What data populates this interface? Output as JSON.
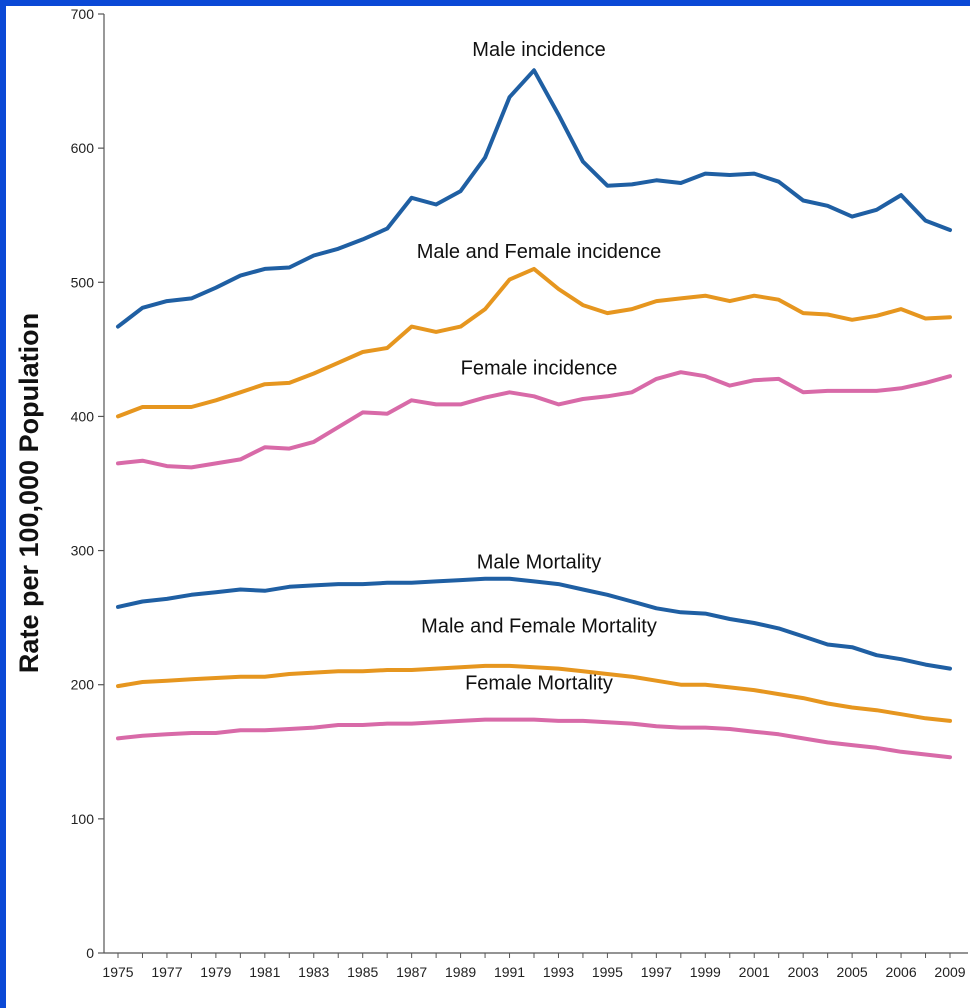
{
  "chart_data": {
    "type": "line",
    "title": "",
    "xlabel": "",
    "ylabel": "Rate per 100,000 Population",
    "ylim": [
      0,
      700
    ],
    "yticks": [
      0,
      100,
      200,
      300,
      400,
      500,
      600,
      700
    ],
    "xlim": [
      1975,
      2009
    ],
    "x_tick_labels": [
      "1975",
      "1977",
      "1979",
      "1981",
      "1983",
      "1985",
      "1987",
      "1989",
      "1991",
      "1993",
      "1995",
      "1997",
      "1999",
      "2001",
      "2003",
      "2005",
      "2006",
      "2009"
    ],
    "grid": false,
    "legend": "none",
    "x": [
      1975,
      1976,
      1977,
      1978,
      1979,
      1980,
      1981,
      1982,
      1983,
      1984,
      1985,
      1986,
      1987,
      1988,
      1989,
      1990,
      1991,
      1992,
      1993,
      1994,
      1995,
      1996,
      1997,
      1998,
      1999,
      2000,
      2001,
      2002,
      2003,
      2004,
      2005,
      2006,
      2007,
      2008,
      2009
    ],
    "series": [
      {
        "name": "Male incidence",
        "color": "#1f5fa3",
        "values": [
          467,
          481,
          486,
          488,
          496,
          505,
          510,
          511,
          520,
          525,
          532,
          540,
          563,
          558,
          568,
          593,
          638,
          658,
          625,
          590,
          572,
          573,
          576,
          574,
          581,
          580,
          581,
          575,
          561,
          557,
          549,
          554,
          565,
          546,
          539
        ]
      },
      {
        "name": "Male and Female incidence",
        "color": "#e6961f",
        "values": [
          400,
          407,
          407,
          407,
          412,
          418,
          424,
          425,
          432,
          440,
          448,
          451,
          467,
          463,
          467,
          480,
          502,
          510,
          495,
          483,
          477,
          480,
          486,
          488,
          490,
          486,
          490,
          487,
          477,
          476,
          472,
          475,
          480,
          473,
          474
        ]
      },
      {
        "name": "Female incidence",
        "color": "#d86aa8",
        "values": [
          365,
          367,
          363,
          362,
          365,
          368,
          377,
          376,
          381,
          392,
          403,
          402,
          412,
          409,
          409,
          414,
          418,
          415,
          409,
          413,
          415,
          418,
          428,
          433,
          430,
          423,
          427,
          428,
          418,
          419,
          419,
          419,
          421,
          425,
          430
        ]
      },
      {
        "name": "Male Mortality",
        "color": "#1f5fa3",
        "values": [
          258,
          262,
          264,
          267,
          269,
          271,
          270,
          273,
          274,
          275,
          275,
          276,
          276,
          277,
          278,
          279,
          279,
          277,
          275,
          271,
          267,
          262,
          257,
          254,
          253,
          249,
          246,
          242,
          236,
          230,
          228,
          222,
          219,
          215,
          212
        ]
      },
      {
        "name": "Male and Female Mortality",
        "color": "#e6961f",
        "values": [
          199,
          202,
          203,
          204,
          205,
          206,
          206,
          208,
          209,
          210,
          210,
          211,
          211,
          212,
          213,
          214,
          214,
          213,
          212,
          210,
          208,
          206,
          203,
          200,
          200,
          198,
          196,
          193,
          190,
          186,
          183,
          181,
          178,
          175,
          173
        ]
      },
      {
        "name": "Female Mortality",
        "color": "#d86aa8",
        "values": [
          160,
          162,
          163,
          164,
          164,
          166,
          166,
          167,
          168,
          170,
          170,
          171,
          171,
          172,
          173,
          174,
          174,
          174,
          173,
          173,
          172,
          171,
          169,
          168,
          168,
          167,
          165,
          163,
          160,
          157,
          155,
          153,
          150,
          148,
          146
        ]
      }
    ]
  }
}
